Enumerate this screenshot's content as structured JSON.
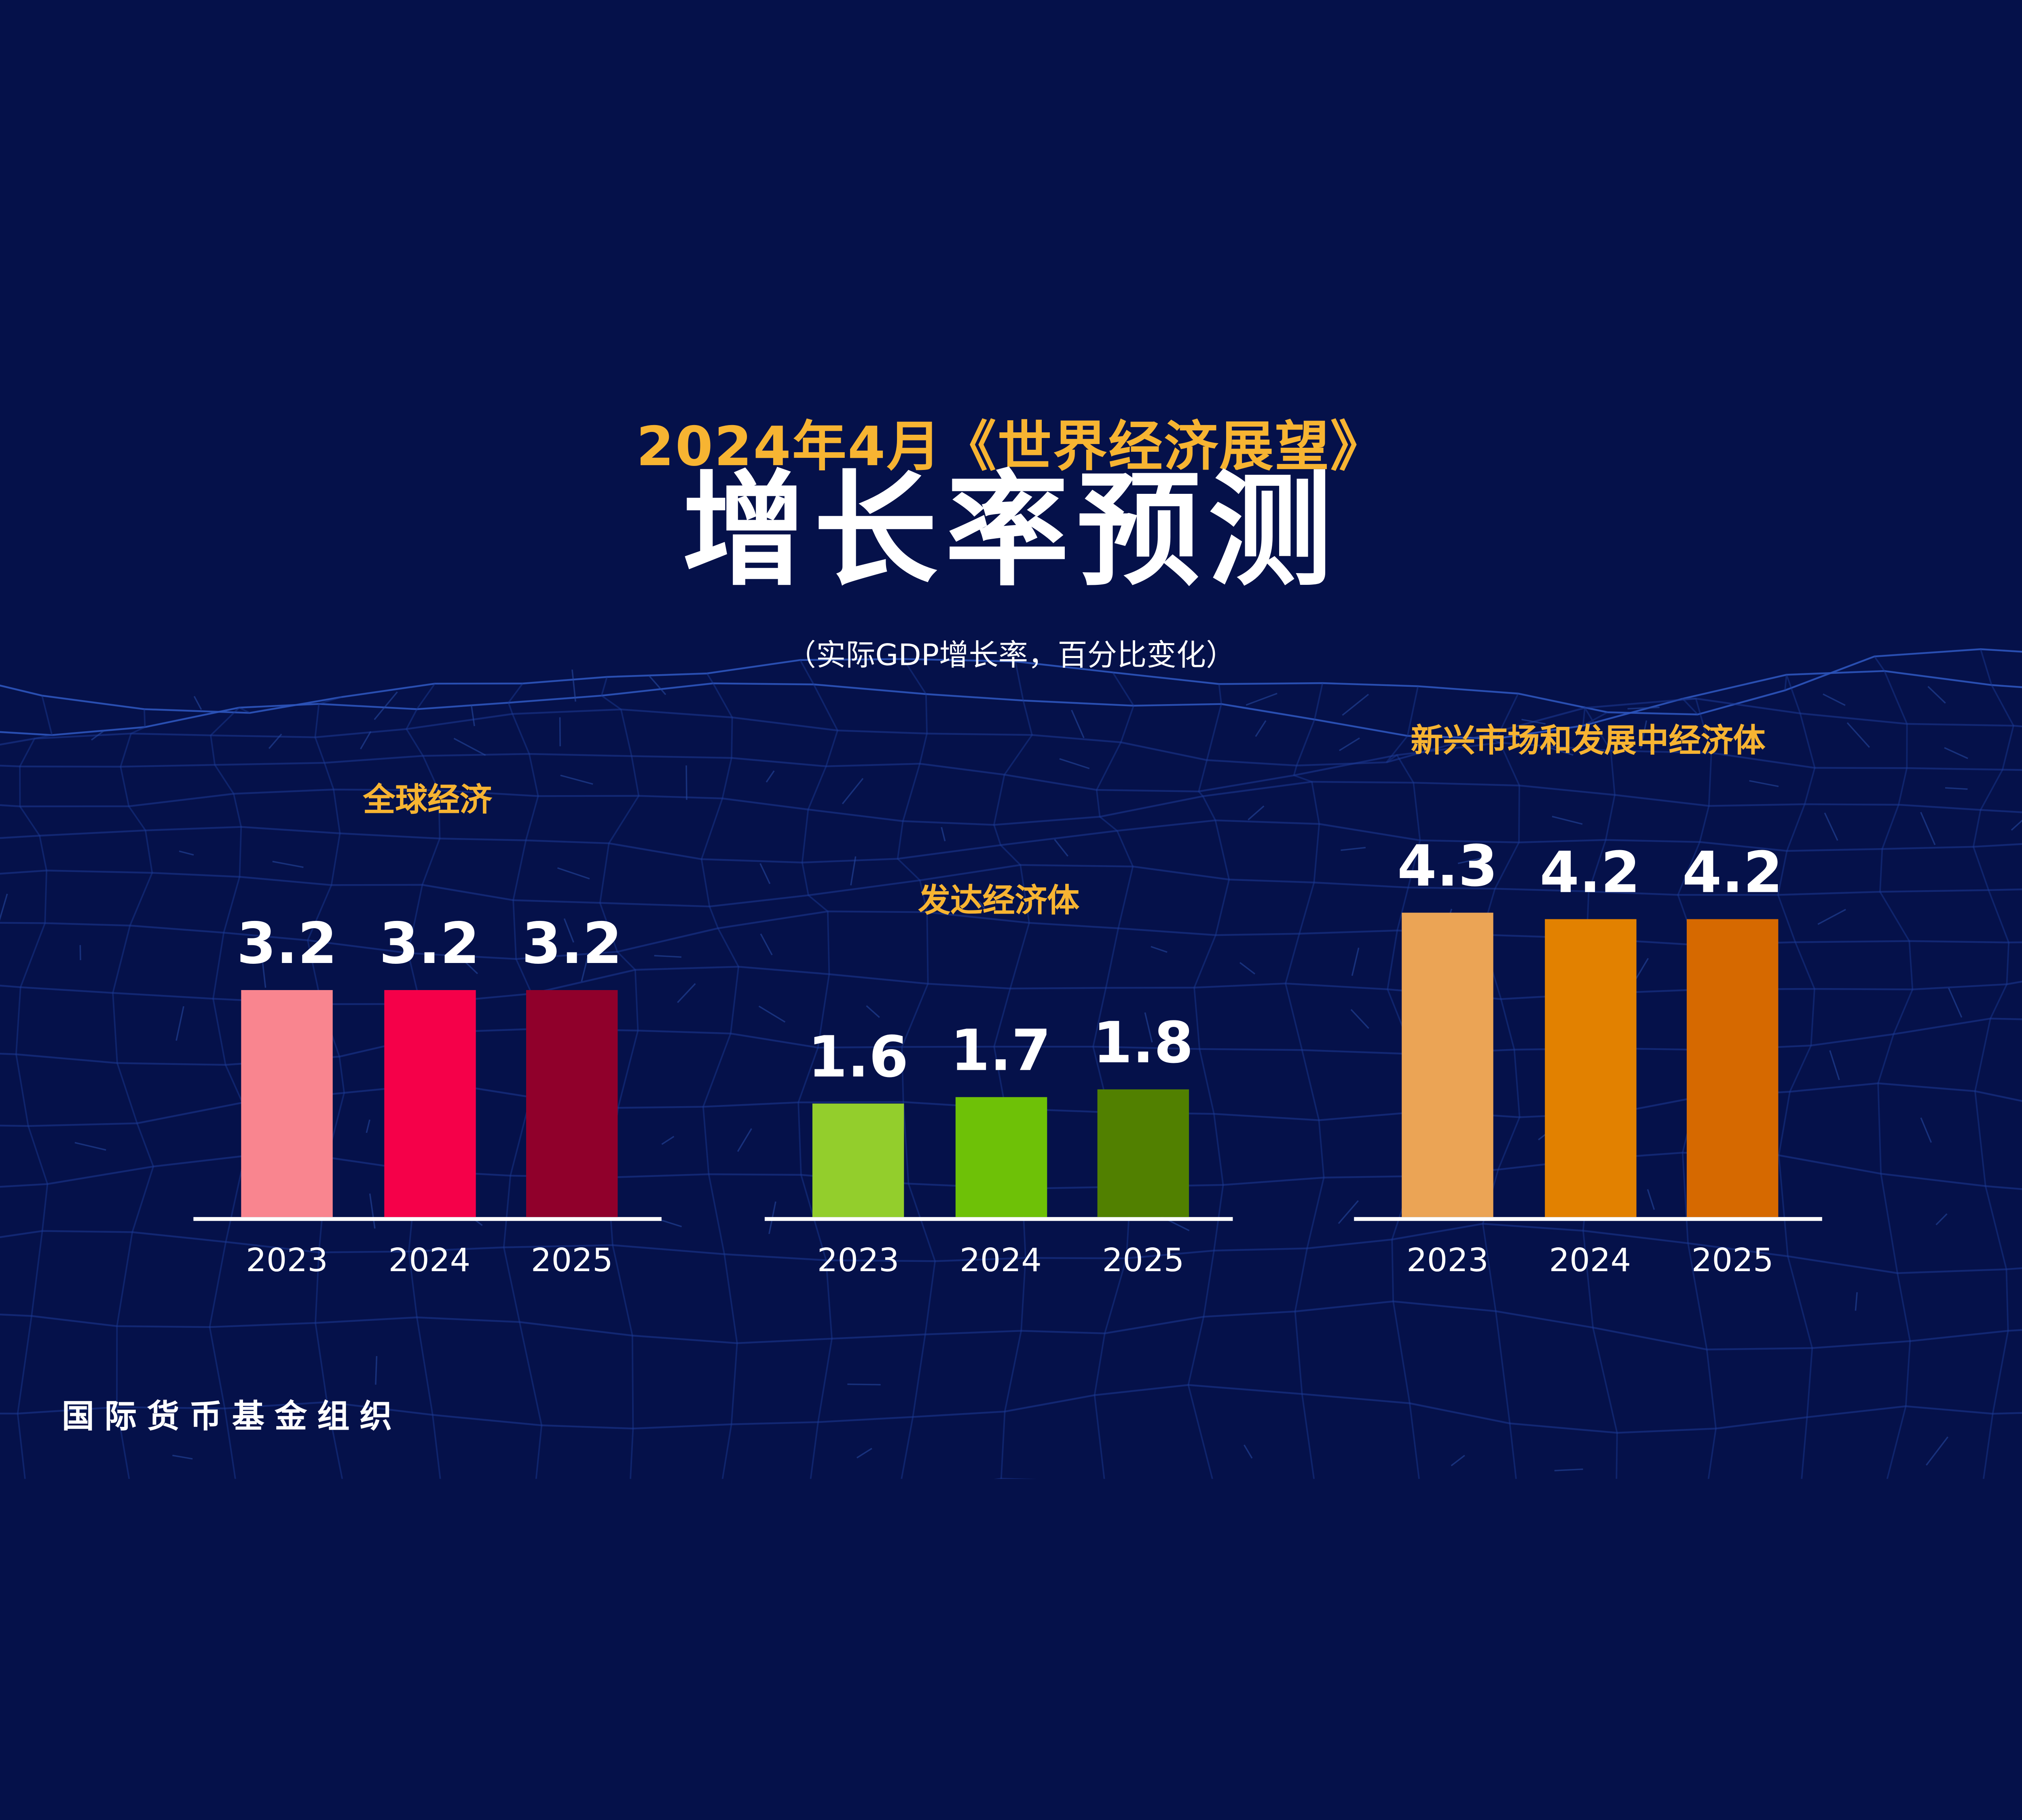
{
  "header": {
    "kicker": "2024年4月《世界经济展望》",
    "title": "增长率预测",
    "subtitle": "（实际GDP增长率，百分比变化）"
  },
  "footer": {
    "source": "国际货币基金组织"
  },
  "colors": {
    "background": "#05114A",
    "mesh_line": "#1D3B96",
    "mesh_ridge": "#2E55BD",
    "accent_gold": "#F7B432",
    "text_white": "#FFFFFF",
    "axis_line": "#FFFFFF"
  },
  "chart_data": {
    "type": "bar",
    "title": "增长率预测",
    "subtitle": "（实际GDP增长率，百分比变化）",
    "unit": "percent",
    "categories": [
      "2023",
      "2024",
      "2025"
    ],
    "ylim": [
      0,
      4.8
    ],
    "grid": false,
    "legend_position": "none",
    "groups": [
      {
        "name": "全球经济",
        "values": [
          3.2,
          3.2,
          3.2
        ],
        "bar_colors": [
          "#F9858F",
          "#F50049",
          "#90002B"
        ]
      },
      {
        "name": "发达经济体",
        "values": [
          1.6,
          1.7,
          1.8
        ],
        "bar_colors": [
          "#93CE2C",
          "#6EC107",
          "#518000"
        ]
      },
      {
        "name": "新兴市场和发展中经济体",
        "values": [
          4.3,
          4.2,
          4.2
        ],
        "bar_colors": [
          "#EBA455",
          "#E28100",
          "#D66900"
        ]
      }
    ]
  }
}
